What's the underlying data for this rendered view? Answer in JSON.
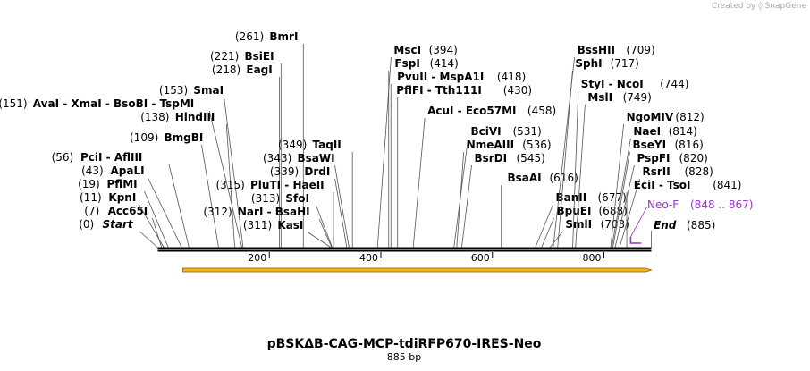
{
  "credit": {
    "prefix": "Created by",
    "brand": "SnapGene",
    "icon": "snapgene-logo-icon"
  },
  "title": "pBSKΔB-CAG-MCP-tdiRFP670-IRES-Neo",
  "length_label": "885 bp",
  "sequence_length": 885,
  "axis_ticks": [
    200,
    400,
    600,
    800
  ],
  "colors": {
    "feature": "#9933cc",
    "arrow_fill": "#f5b51b",
    "arrow_stroke": "#8a5a00",
    "backbone": "#000000"
  },
  "primer": {
    "name": "Neo-F",
    "range": "(848 .. 867)",
    "start": 848,
    "end": 867
  },
  "end_marker": {
    "name": "End",
    "pos": "(885)",
    "position": 885
  },
  "sites": [
    {
      "pos": "(0)",
      "position": 0,
      "parts": [
        "Start"
      ],
      "italic": true
    },
    {
      "pos": "(7)",
      "position": 7,
      "parts": [
        "Acc65I"
      ]
    },
    {
      "pos": "(11)",
      "position": 11,
      "parts": [
        "KpnI"
      ]
    },
    {
      "pos": "(19)",
      "position": 19,
      "parts": [
        "PflMI"
      ]
    },
    {
      "pos": "(43)",
      "position": 43,
      "parts": [
        "ApaLI"
      ]
    },
    {
      "pos": "(56)",
      "position": 56,
      "parts": [
        "PciI",
        "AflIII"
      ]
    },
    {
      "pos": "(109)",
      "position": 109,
      "parts": [
        "BmgBI"
      ]
    },
    {
      "pos": "(138)",
      "position": 138,
      "parts": [
        "HindIII"
      ]
    },
    {
      "pos": "(151)",
      "position": 151,
      "parts": [
        "AvaI",
        "XmaI",
        "BsoBI",
        "TspMI"
      ]
    },
    {
      "pos": "(153)",
      "position": 153,
      "parts": [
        "SmaI"
      ]
    },
    {
      "pos": "(218)",
      "position": 218,
      "parts": [
        "EagI"
      ]
    },
    {
      "pos": "(221)",
      "position": 221,
      "parts": [
        "BsiEI"
      ]
    },
    {
      "pos": "(261)",
      "position": 261,
      "parts": [
        "BmrI"
      ]
    },
    {
      "pos": "(311)",
      "position": 311,
      "parts": [
        "KasI"
      ]
    },
    {
      "pos": "(312)",
      "position": 312,
      "parts": [
        "NarI",
        "BsaHI"
      ]
    },
    {
      "pos": "(313)",
      "position": 313,
      "parts": [
        "SfoI"
      ]
    },
    {
      "pos": "(315)",
      "position": 315,
      "parts": [
        "PluTI",
        "HaeII"
      ]
    },
    {
      "pos": "(339)",
      "position": 339,
      "parts": [
        "DrdI"
      ]
    },
    {
      "pos": "(343)",
      "position": 343,
      "parts": [
        "BsaWI"
      ]
    },
    {
      "pos": "(349)",
      "position": 349,
      "parts": [
        "TaqII"
      ]
    },
    {
      "pos": "(394)",
      "position": 394,
      "parts": [
        "MscI"
      ]
    },
    {
      "pos": "(414)",
      "position": 414,
      "parts": [
        "FspI"
      ]
    },
    {
      "pos": "(418)",
      "position": 418,
      "parts": [
        "PvuII",
        "MspA1I"
      ]
    },
    {
      "pos": "(430)",
      "position": 430,
      "parts": [
        "PflFI",
        "Tth111I"
      ]
    },
    {
      "pos": "(458)",
      "position": 458,
      "parts": [
        "AcuI",
        "Eco57MI"
      ]
    },
    {
      "pos": "(531)",
      "position": 531,
      "parts": [
        "BciVI"
      ]
    },
    {
      "pos": "(536)",
      "position": 536,
      "parts": [
        "NmeAIII"
      ]
    },
    {
      "pos": "(545)",
      "position": 545,
      "parts": [
        "BsrDI"
      ]
    },
    {
      "pos": "(616)",
      "position": 616,
      "parts": [
        "BsaAI"
      ]
    },
    {
      "pos": "(677)",
      "position": 677,
      "parts": [
        "BanII"
      ]
    },
    {
      "pos": "(688)",
      "position": 688,
      "parts": [
        "BpuEI"
      ]
    },
    {
      "pos": "(703)",
      "position": 703,
      "parts": [
        "SmlI"
      ]
    },
    {
      "pos": "(709)",
      "position": 709,
      "parts": [
        "BssHII"
      ]
    },
    {
      "pos": "(717)",
      "position": 717,
      "parts": [
        "SphI"
      ]
    },
    {
      "pos": "(744)",
      "position": 744,
      "parts": [
        "StyI",
        "NcoI"
      ]
    },
    {
      "pos": "(749)",
      "position": 749,
      "parts": [
        "MslI"
      ]
    },
    {
      "pos": "(812)",
      "position": 812,
      "parts": [
        "NgoMIV"
      ]
    },
    {
      "pos": "(814)",
      "position": 814,
      "parts": [
        "NaeI"
      ]
    },
    {
      "pos": "(816)",
      "position": 816,
      "parts": [
        "BseYI"
      ]
    },
    {
      "pos": "(820)",
      "position": 820,
      "parts": [
        "PspFI"
      ]
    },
    {
      "pos": "(828)",
      "position": 828,
      "parts": [
        "RsrII"
      ]
    },
    {
      "pos": "(841)",
      "position": 841,
      "parts": [
        "EciI",
        "TsoI"
      ]
    }
  ]
}
